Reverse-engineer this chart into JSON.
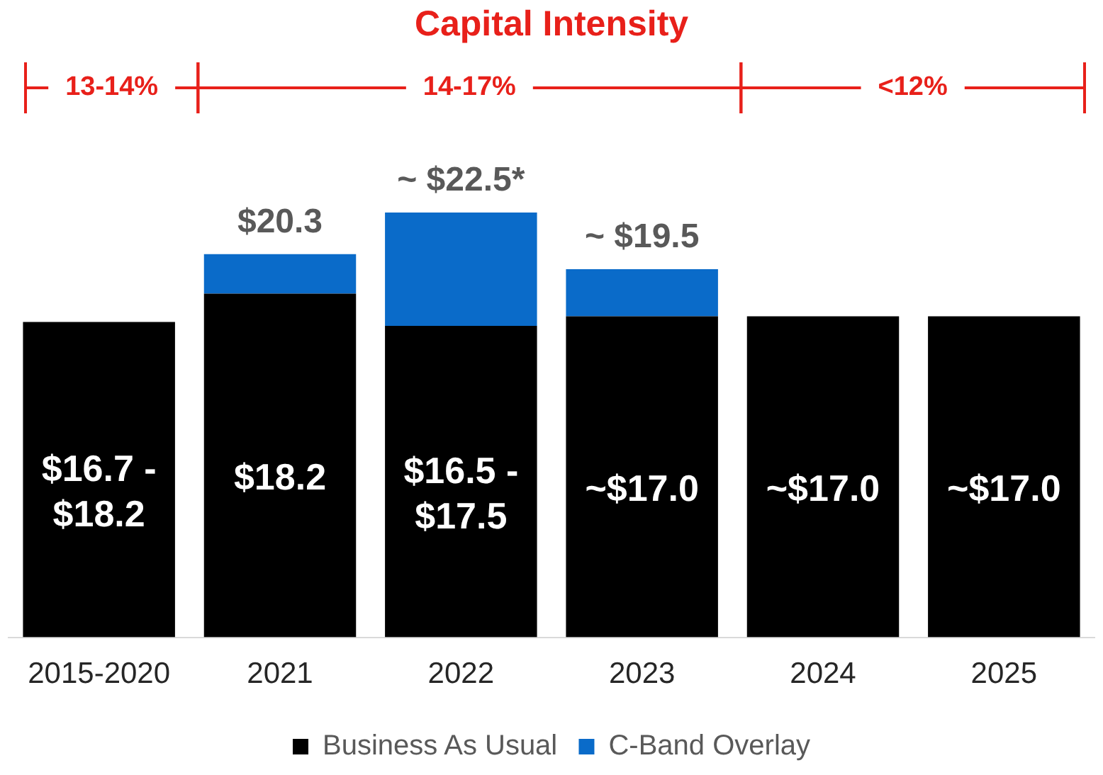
{
  "chart_data": {
    "type": "bar",
    "title": "Capital Intensity",
    "stacked": true,
    "categories": [
      "2015-2020",
      "2021",
      "2022",
      "2023",
      "2024",
      "2025"
    ],
    "series": [
      {
        "name": "Business As Usual",
        "color": "#000000",
        "values": [
          16.7,
          18.2,
          16.5,
          17.0,
          17.0,
          17.0
        ],
        "value_labels": [
          "$16.7 - $18.2",
          "$18.2",
          "$16.5 - $17.5",
          "~$17.0",
          "~$17.0",
          "~$17.0"
        ]
      },
      {
        "name": "C-Band Overlay",
        "color": "#0a6bc9",
        "values": [
          null,
          2.1,
          6.0,
          2.5,
          null,
          null
        ]
      }
    ],
    "totals": [
      null,
      "$20.3",
      "~ $22.5*",
      "~ $19.5",
      null,
      null
    ],
    "annotations": [
      "13-14%",
      "14-17%",
      "<12%"
    ],
    "legend": "bottom",
    "grid": false
  }
}
